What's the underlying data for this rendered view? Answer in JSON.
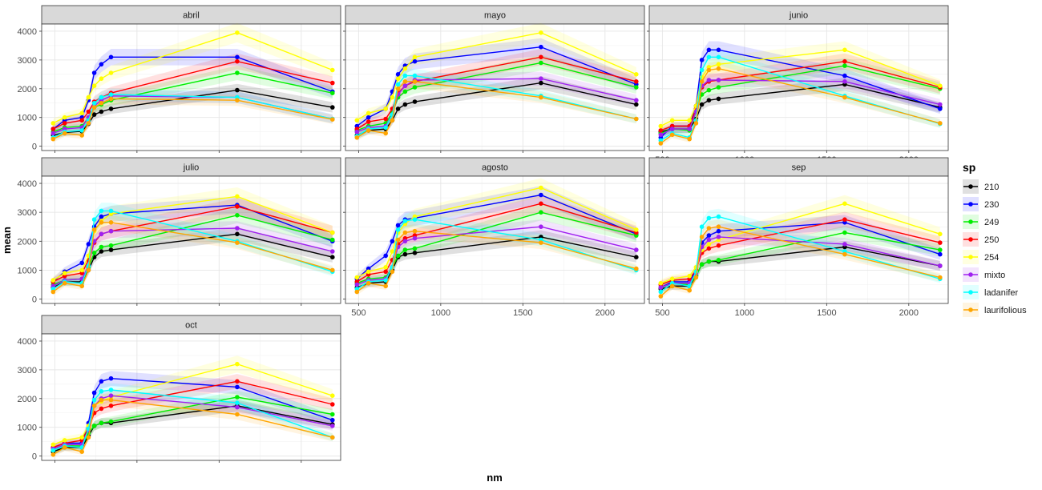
{
  "chart_data": {
    "type": "line",
    "xlabel": "nm",
    "ylabel": "mean",
    "x": [
      490,
      560,
      665,
      705,
      740,
      783,
      842,
      1610,
      2190
    ],
    "xlim": [
      420,
      2240
    ],
    "ylim": [
      -150,
      4250
    ],
    "xticks": [
      500,
      1000,
      1500,
      2000
    ],
    "yticks": [
      0,
      1000,
      2000,
      3000,
      4000
    ],
    "grid": true,
    "legend": {
      "title": "sp",
      "position": "right",
      "items": [
        {
          "name": "210",
          "color": "#000000"
        },
        {
          "name": "230",
          "color": "#0000ff"
        },
        {
          "name": "249",
          "color": "#00ee00"
        },
        {
          "name": "250",
          "color": "#ff0000"
        },
        {
          "name": "254",
          "color": "#ffff00"
        },
        {
          "name": "mixto",
          "color": "#a020f0"
        },
        {
          "name": "ladanifer",
          "color": "#00ffff"
        },
        {
          "name": "laurifolious",
          "color": "#ffa500"
        }
      ]
    },
    "panels": [
      {
        "title": "abril",
        "series": [
          {
            "name": "210",
            "values": [
              380,
              480,
              520,
              780,
              1100,
              1200,
              1300,
              1950,
              1350
            ]
          },
          {
            "name": "230",
            "values": [
              600,
              900,
              1000,
              1600,
              2550,
              2850,
              3100,
              3100,
              1900
            ]
          },
          {
            "name": "249",
            "values": [
              500,
              650,
              700,
              1000,
              1350,
              1450,
              1600,
              2550,
              1850
            ]
          },
          {
            "name": "250",
            "values": [
              600,
              800,
              900,
              1200,
              1550,
              1700,
              1850,
              2950,
              2200
            ]
          },
          {
            "name": "254",
            "values": [
              800,
              1000,
              1150,
              1700,
              2100,
              2350,
              2550,
              3950,
              2650
            ]
          },
          {
            "name": "mixto",
            "values": [
              450,
              600,
              650,
              1000,
              1400,
              1600,
              1750,
              1700,
              950
            ]
          },
          {
            "name": "ladanifer",
            "values": [
              300,
              500,
              550,
              900,
              1500,
              1700,
              1800,
              1700,
              950
            ]
          },
          {
            "name": "laurifolious",
            "values": [
              250,
              450,
              380,
              800,
              1350,
              1500,
              1650,
              1600,
              930
            ]
          }
        ]
      },
      {
        "title": "mayo",
        "series": [
          {
            "name": "210",
            "values": [
              380,
              550,
              600,
              900,
              1300,
              1450,
              1550,
              2200,
              1450
            ]
          },
          {
            "name": "230",
            "values": [
              700,
              1000,
              1300,
              1900,
              2500,
              2800,
              2950,
              3450,
              2150
            ]
          },
          {
            "name": "249",
            "values": [
              550,
              700,
              800,
              1150,
              1700,
              1900,
              2050,
              2900,
              2050
            ]
          },
          {
            "name": "250",
            "values": [
              600,
              850,
              950,
              1300,
              1850,
              2100,
              2250,
              3100,
              2250
            ]
          },
          {
            "name": "254",
            "values": [
              900,
              1150,
              1300,
              1700,
              2350,
              2700,
              3100,
              3950,
              2500
            ]
          },
          {
            "name": "mixto",
            "values": [
              500,
              650,
              700,
              1100,
              1800,
              2100,
              2300,
              2350,
              1600
            ]
          },
          {
            "name": "ladanifer",
            "values": [
              350,
              600,
              650,
              1100,
              2150,
              2450,
              2450,
              1750,
              950
            ]
          },
          {
            "name": "laurifolious",
            "values": [
              300,
              550,
              450,
              900,
              2000,
              2250,
              2250,
              1700,
              950
            ]
          }
        ]
      },
      {
        "title": "junio",
        "series": [
          {
            "name": "210",
            "values": [
              500,
              600,
              600,
              950,
              1450,
              1600,
              1650,
              2150,
              1350
            ]
          },
          {
            "name": "230",
            "values": [
              300,
              700,
              700,
              1400,
              3000,
              3350,
              3350,
              2450,
              1300
            ]
          },
          {
            "name": "249",
            "values": [
              450,
              600,
              550,
              1200,
              1800,
              1950,
              2050,
              2800,
              2000
            ]
          },
          {
            "name": "250",
            "values": [
              550,
              700,
              700,
              1300,
              2050,
              2250,
              2300,
              2950,
              2050
            ]
          },
          {
            "name": "254",
            "values": [
              700,
              900,
              900,
              1400,
              2400,
              2750,
              2850,
              3350,
              2100
            ]
          },
          {
            "name": "mixto",
            "values": [
              400,
              600,
              600,
              1200,
              2100,
              2300,
              2300,
              2250,
              1450
            ]
          },
          {
            "name": "ladanifer",
            "values": [
              200,
              450,
              300,
              900,
              2650,
              3100,
              3100,
              1750,
              780
            ]
          },
          {
            "name": "laurifolious",
            "values": [
              100,
              400,
              250,
              800,
              2250,
              2650,
              2700,
              1700,
              800
            ]
          }
        ]
      },
      {
        "title": "julio",
        "series": [
          {
            "name": "210",
            "values": [
              400,
              600,
              600,
              1000,
              1450,
              1650,
              1700,
              2250,
              1450
            ]
          },
          {
            "name": "230",
            "values": [
              600,
              950,
              1250,
              1900,
              2500,
              2850,
              2950,
              3250,
              2000
            ]
          },
          {
            "name": "249",
            "values": [
              500,
              650,
              700,
              1100,
              1600,
              1800,
              1850,
              2900,
              2050
            ]
          },
          {
            "name": "250",
            "values": [
              600,
              800,
              900,
              1350,
              1950,
              2250,
              2350,
              3200,
              2300
            ]
          },
          {
            "name": "254",
            "values": [
              650,
              900,
              1000,
              1500,
              2350,
              2700,
              2950,
              3550,
              2300
            ]
          },
          {
            "name": "mixto",
            "values": [
              450,
              650,
              700,
              1150,
              2000,
              2250,
              2350,
              2450,
              1650
            ]
          },
          {
            "name": "ladanifer",
            "values": [
              350,
              600,
              550,
              1150,
              2750,
              3050,
              3050,
              2000,
              950
            ]
          },
          {
            "name": "laurifolious",
            "values": [
              250,
              550,
              450,
              1000,
              2400,
              2650,
              2650,
              1950,
              1000
            ]
          }
        ]
      },
      {
        "title": "agosto",
        "series": [
          {
            "name": "210",
            "values": [
              400,
              550,
              600,
              1000,
              1450,
              1550,
              1600,
              2150,
              1450
            ]
          },
          {
            "name": "230",
            "values": [
              700,
              1050,
              1500,
              2000,
              2550,
              2750,
              2800,
              3600,
              2250
            ]
          },
          {
            "name": "249",
            "values": [
              550,
              700,
              750,
              1100,
              1500,
              1700,
              1750,
              3000,
              2200
            ]
          },
          {
            "name": "250",
            "values": [
              600,
              850,
              950,
              1350,
              1900,
              2100,
              2200,
              3300,
              2300
            ]
          },
          {
            "name": "254",
            "values": [
              750,
              950,
              1100,
              1650,
              2300,
              2600,
              2850,
              3850,
              2400
            ]
          },
          {
            "name": "mixto",
            "values": [
              500,
              650,
              700,
              1100,
              1800,
              2000,
              2100,
              2500,
              1700
            ]
          },
          {
            "name": "ladanifer",
            "values": [
              350,
              600,
              650,
              1100,
              2400,
              2700,
              2750,
              2050,
              1000
            ]
          },
          {
            "name": "laurifolious",
            "values": [
              250,
              550,
              450,
              950,
              2050,
              2300,
              2350,
              1950,
              1050
            ]
          }
        ]
      },
      {
        "title": "sep",
        "series": [
          {
            "name": "210",
            "values": [
              350,
              450,
              450,
              800,
              1200,
              1300,
              1300,
              1800,
              1150
            ]
          },
          {
            "name": "230",
            "values": [
              400,
              600,
              600,
              1000,
              1950,
              2200,
              2350,
              2650,
              1550
            ]
          },
          {
            "name": "249",
            "values": [
              400,
              550,
              500,
              800,
              1200,
              1300,
              1350,
              2300,
              1700
            ]
          },
          {
            "name": "250",
            "values": [
              500,
              650,
              700,
              1000,
              1600,
              1750,
              1850,
              2750,
              1950
            ]
          },
          {
            "name": "254",
            "values": [
              550,
              700,
              800,
              1100,
              1700,
              1900,
              2050,
              3300,
              2250
            ]
          },
          {
            "name": "mixto",
            "values": [
              400,
              550,
              550,
              900,
              1800,
              2050,
              2150,
              1900,
              1150
            ]
          },
          {
            "name": "ladanifer",
            "values": [
              250,
              550,
              450,
              950,
              2500,
              2800,
              2850,
              1650,
              700
            ]
          },
          {
            "name": "laurifolious",
            "values": [
              100,
              450,
              300,
              750,
              2150,
              2450,
              2500,
              1550,
              750
            ]
          }
        ]
      },
      {
        "title": "oct",
        "series": [
          {
            "name": "210",
            "values": [
              150,
              300,
              300,
              700,
              1050,
              1150,
              1150,
              1750,
              1100
            ]
          },
          {
            "name": "230",
            "values": [
              300,
              450,
              450,
              1150,
              2200,
              2600,
              2700,
              2400,
              1250
            ]
          },
          {
            "name": "249",
            "values": [
              200,
              350,
              350,
              800,
              1050,
              1150,
              1200,
              2050,
              1450
            ]
          },
          {
            "name": "250",
            "values": [
              300,
              450,
              550,
              950,
              1500,
              1650,
              1750,
              2600,
              1800
            ]
          },
          {
            "name": "254",
            "values": [
              400,
              550,
              650,
              1050,
              1750,
              1900,
              2050,
              3200,
              2100
            ]
          },
          {
            "name": "mixto",
            "values": [
              250,
              400,
              400,
              900,
              1750,
              2000,
              2100,
              1700,
              1050
            ]
          },
          {
            "name": "ladanifer",
            "values": [
              200,
              350,
              300,
              950,
              1950,
              2250,
              2300,
              1850,
              650
            ]
          },
          {
            "name": "laurifolious",
            "values": [
              50,
              300,
              150,
              650,
              1750,
              1950,
              1950,
              1450,
              650
            ]
          }
        ]
      }
    ]
  }
}
